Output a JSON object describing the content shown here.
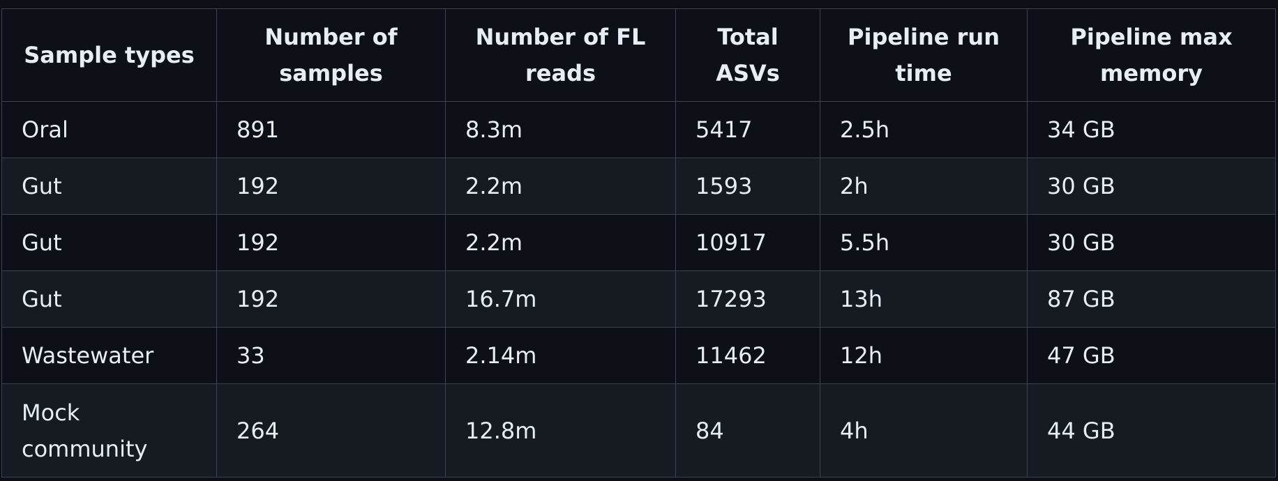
{
  "table": {
    "headers": [
      "Sample types",
      "Number of samples",
      "Number of FL reads",
      "Total ASVs",
      "Pipeline run time",
      "Pipeline max memory"
    ],
    "rows": [
      [
        "Oral",
        "891",
        "8.3m",
        "5417",
        "2.5h",
        "34 GB"
      ],
      [
        "Gut",
        "192",
        "2.2m",
        "1593",
        "2h",
        "30 GB"
      ],
      [
        "Gut",
        "192",
        "2.2m",
        "10917",
        "5.5h",
        "30 GB"
      ],
      [
        "Gut",
        "192",
        "16.7m",
        "17293",
        "13h",
        "87 GB"
      ],
      [
        "Wastewater",
        "33",
        "2.14m",
        "11462",
        "12h",
        "47 GB"
      ],
      [
        "Mock community",
        "264",
        "12.8m",
        "84",
        "4h",
        "44 GB"
      ]
    ]
  },
  "colors": {
    "background": "#0d1117",
    "row_alt": "#161b22",
    "border": "#3d444d",
    "text": "#e6edf3"
  }
}
